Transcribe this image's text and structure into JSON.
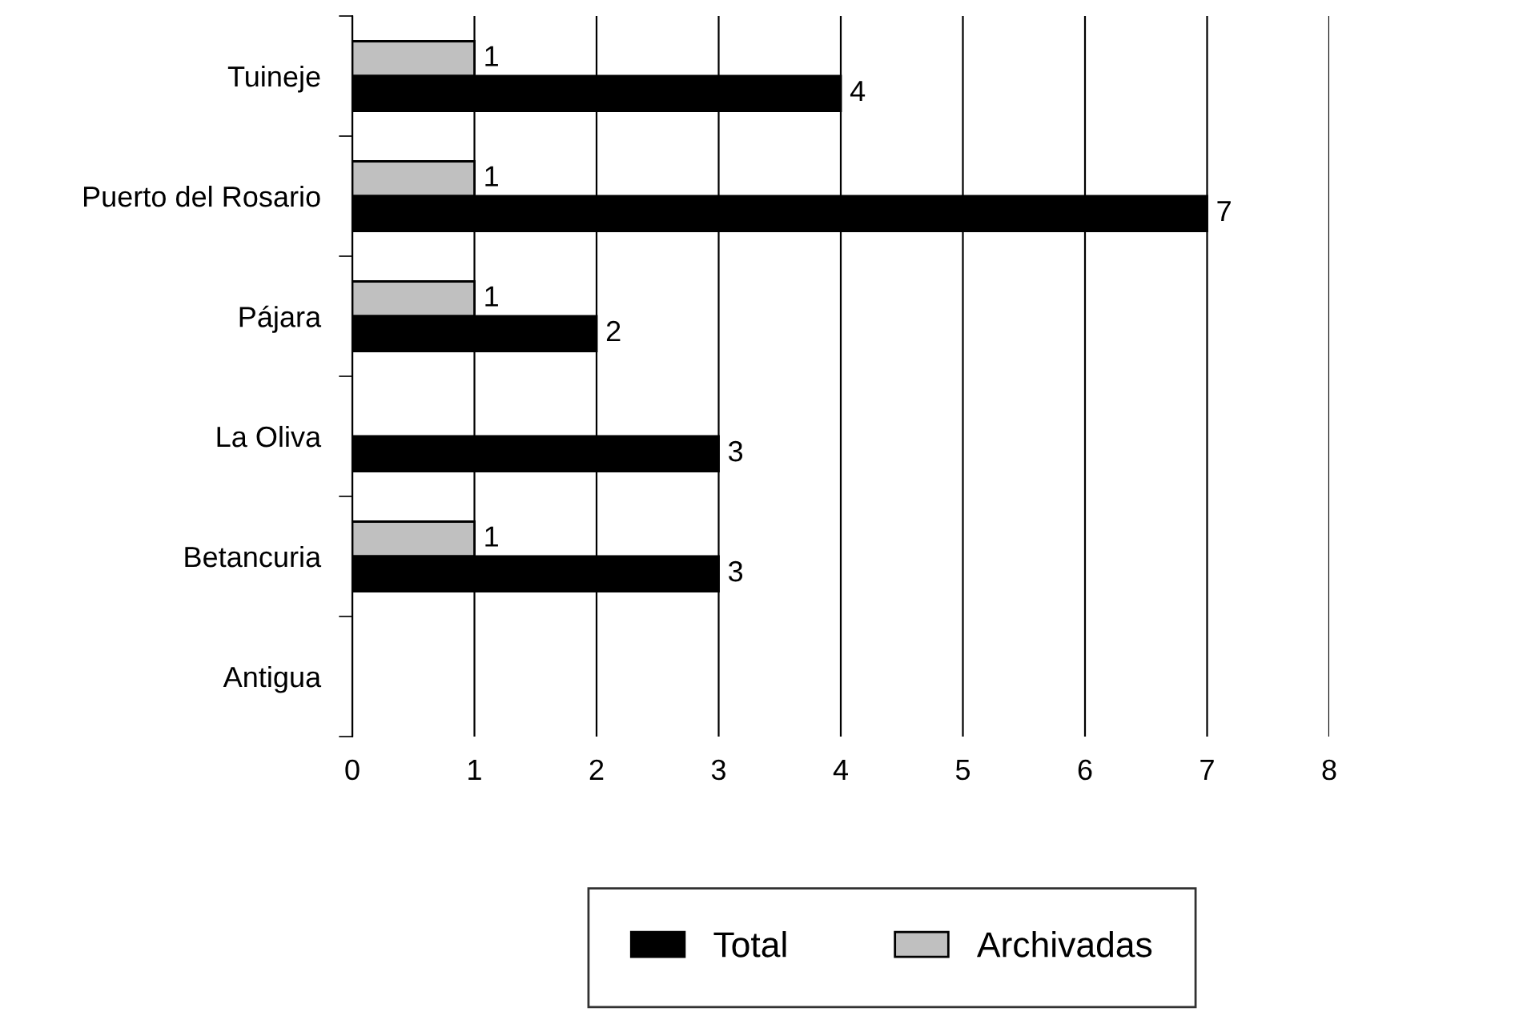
{
  "chart_data": {
    "type": "bar",
    "orientation": "horizontal",
    "categories": [
      "Tuineje",
      "Puerto del Rosario",
      "Pájara",
      "La Oliva",
      "Betancuria",
      "Antigua"
    ],
    "series": [
      {
        "name": "Archivadas",
        "color": "#c0c0c0",
        "values": [
          1,
          1,
          1,
          null,
          1,
          null
        ]
      },
      {
        "name": "Total",
        "color": "#000000",
        "values": [
          4,
          7,
          2,
          3,
          3,
          null
        ]
      }
    ],
    "xlim": [
      0,
      8
    ],
    "xticks": [
      0,
      1,
      2,
      3,
      4,
      5,
      6,
      7,
      8
    ],
    "grid": "x",
    "legend": "bottom",
    "data_labels": true
  }
}
